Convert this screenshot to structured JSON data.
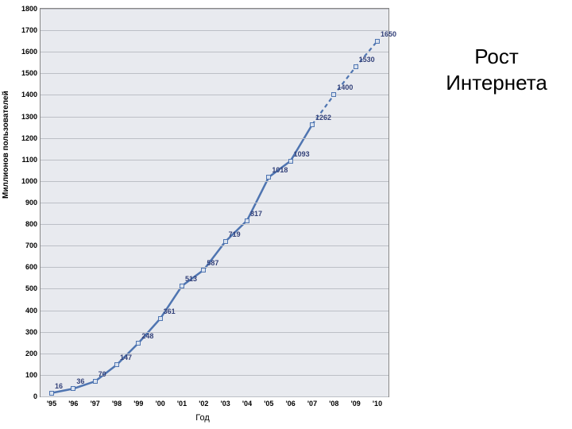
{
  "title": "Рост Интернета",
  "chart": {
    "type": "line",
    "y_axis_title": "Миллионов пользователей",
    "x_axis_title": "Год",
    "background_color": "#e8eaef",
    "grid_color": "#bcbfc6",
    "axis_color": "#888888",
    "label_color": "#34427a",
    "label_fontsize": 9,
    "tick_fontsize": 9,
    "ylim": [
      0,
      1800
    ],
    "ytick_step": 100,
    "solid": {
      "color": "#4f75b1",
      "line_width": 2.5,
      "marker_border": "#4f75b1",
      "marker_fill": "#d9e2ef",
      "marker_size": 6,
      "dash": "none"
    },
    "dashed": {
      "color": "#4f75b1",
      "line_width": 2.2,
      "marker_border": "#4f75b1",
      "marker_fill": "#d9e2ef",
      "marker_size": 6,
      "dash": "5,4"
    },
    "x_labels": [
      "'95",
      "'96",
      "'97",
      "'98",
      "'99",
      "'00",
      "'01",
      "'02",
      "'03",
      "'04",
      "'05",
      "'06",
      "'07",
      "'08",
      "'09",
      "'10"
    ],
    "points": [
      {
        "xi": 0,
        "value": 16,
        "seg": "solid"
      },
      {
        "xi": 1,
        "value": 36,
        "seg": "solid"
      },
      {
        "xi": 2,
        "value": 70,
        "seg": "solid"
      },
      {
        "xi": 3,
        "value": 147,
        "seg": "solid"
      },
      {
        "xi": 4,
        "value": 248,
        "seg": "solid"
      },
      {
        "xi": 5,
        "value": 361,
        "seg": "solid"
      },
      {
        "xi": 6,
        "value": 513,
        "seg": "solid"
      },
      {
        "xi": 7,
        "value": 587,
        "seg": "solid"
      },
      {
        "xi": 8,
        "value": 719,
        "seg": "solid"
      },
      {
        "xi": 9,
        "value": 817,
        "seg": "solid"
      },
      {
        "xi": 10,
        "value": 1018,
        "seg": "solid"
      },
      {
        "xi": 11,
        "value": 1093,
        "seg": "solid"
      },
      {
        "xi": 12,
        "value": 1262,
        "seg": "solid"
      },
      {
        "xi": 13,
        "value": 1400,
        "seg": "dashed"
      },
      {
        "xi": 14,
        "value": 1530,
        "seg": "dashed"
      },
      {
        "xi": 15,
        "value": 1650,
        "seg": "dashed"
      }
    ]
  }
}
